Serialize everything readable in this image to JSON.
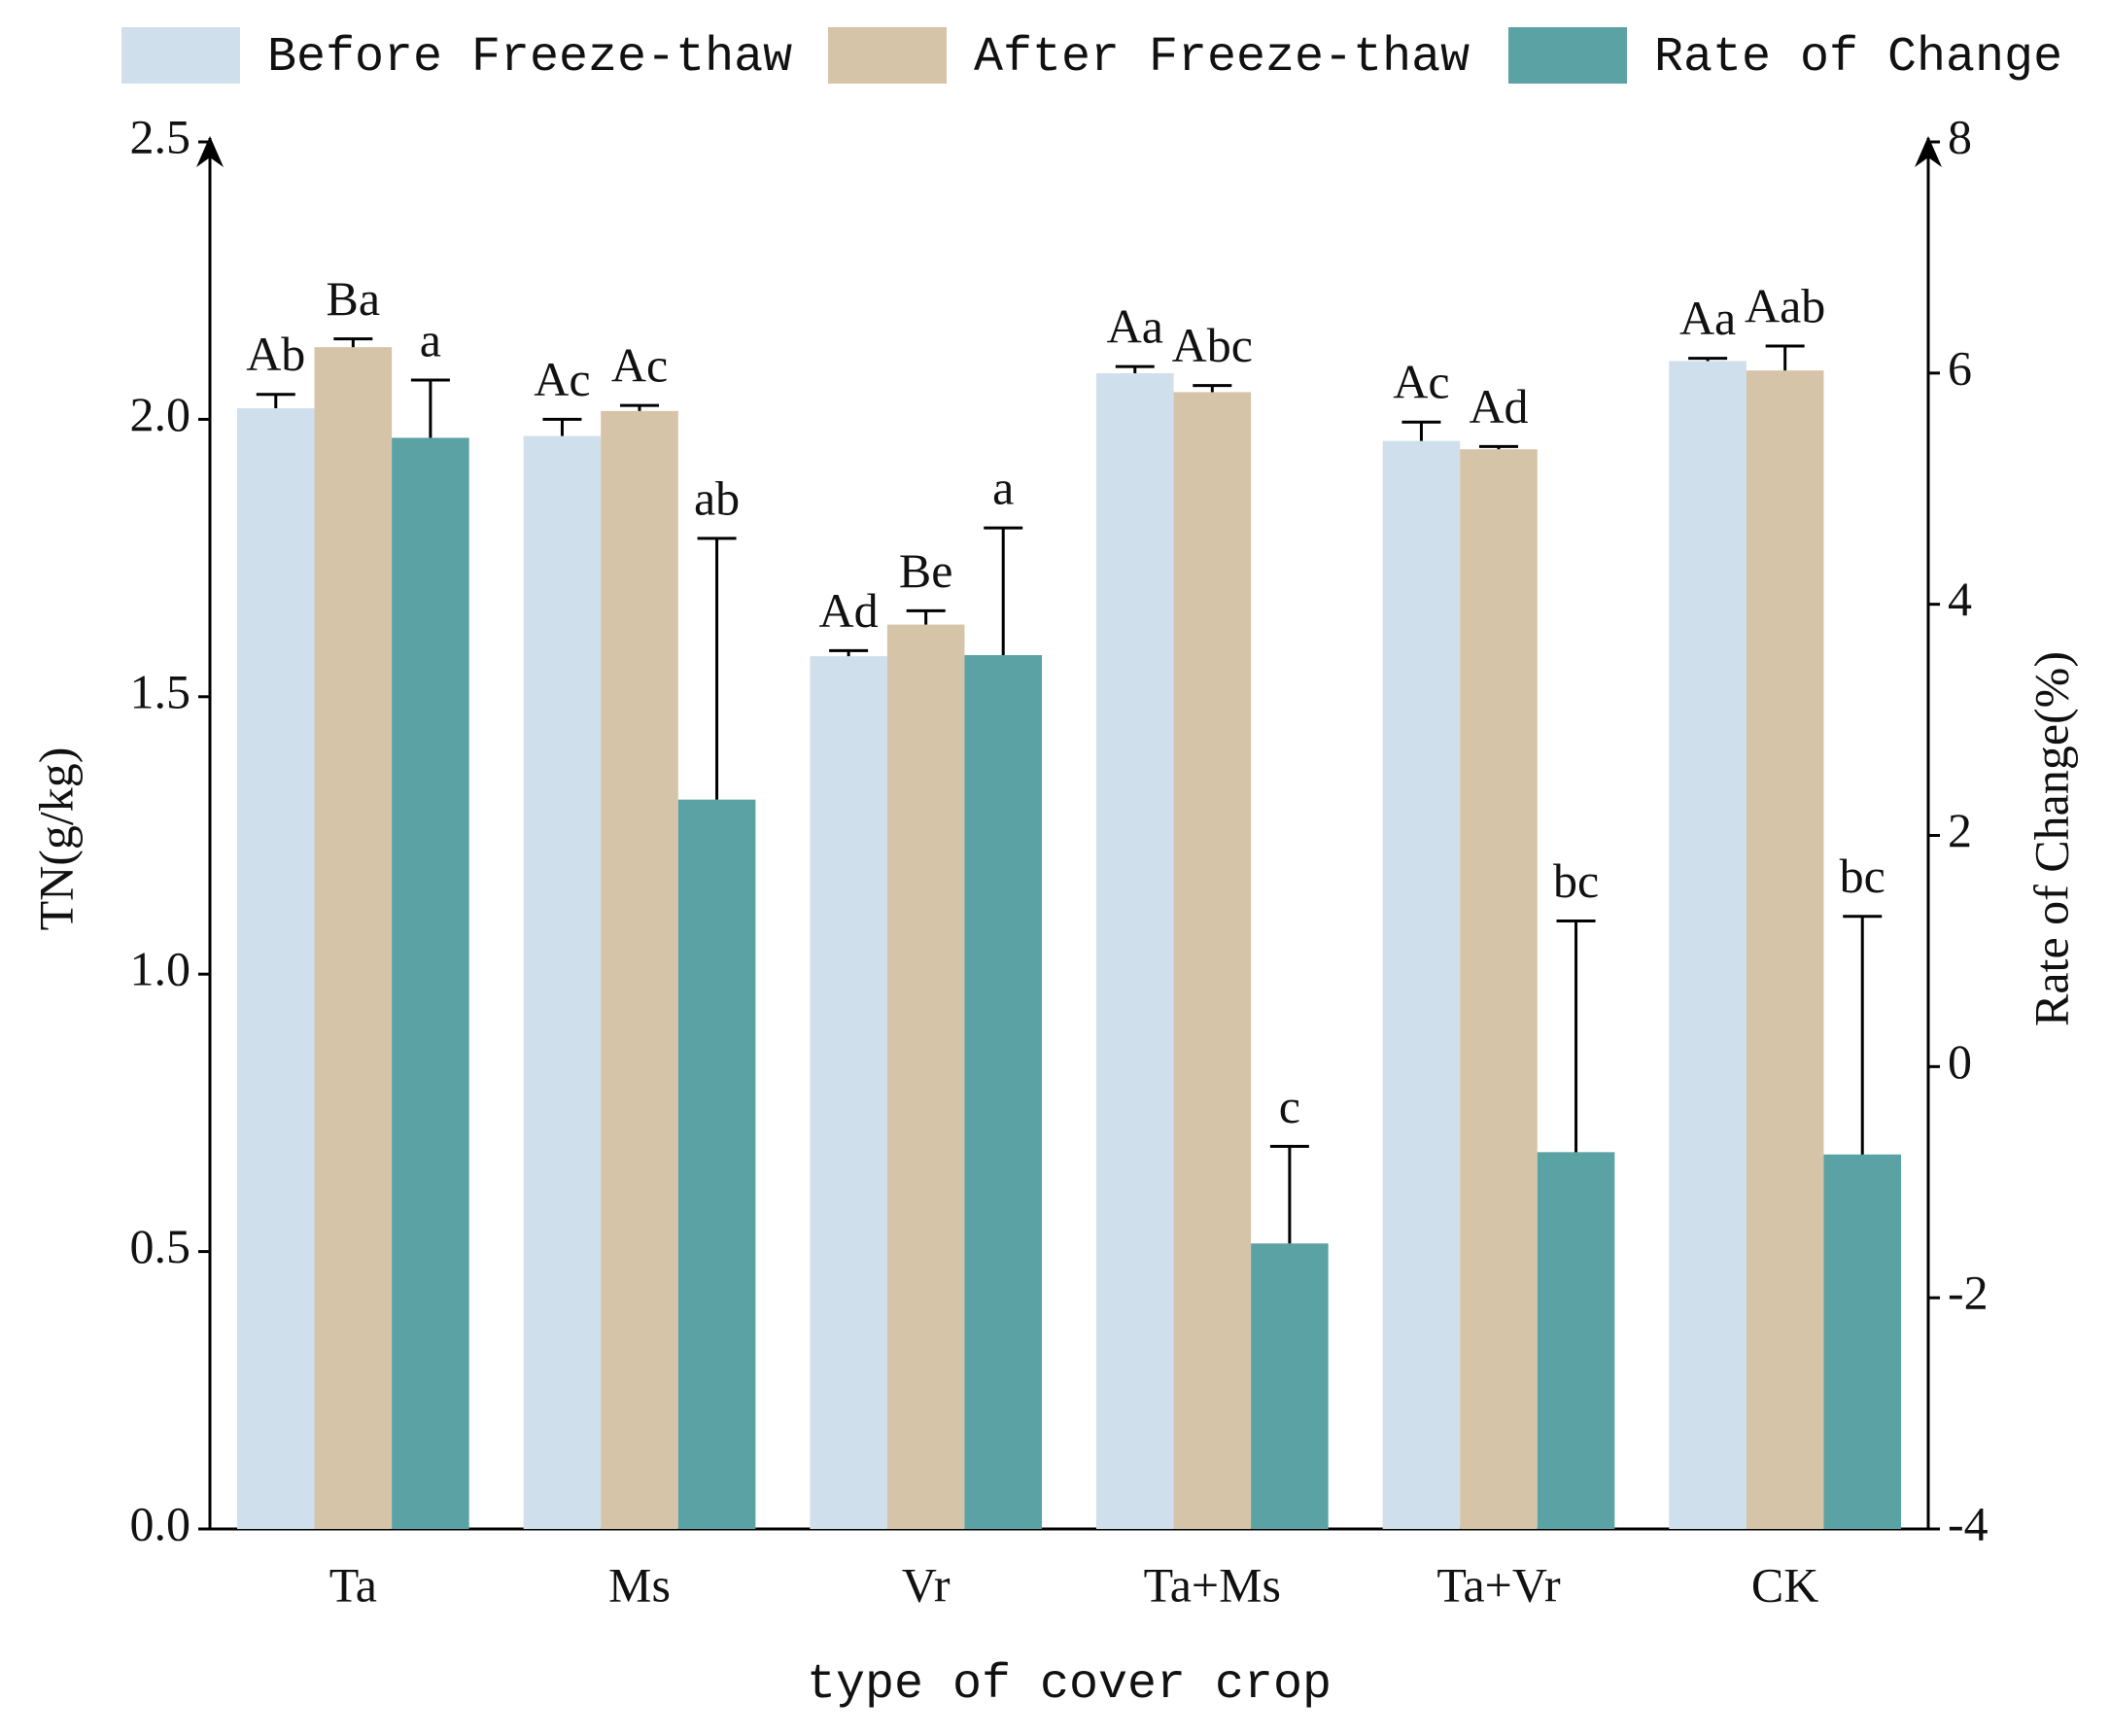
{
  "chart_data": {
    "type": "bar",
    "x_label": "type of cover crop",
    "y_label": "TN(g/kg)",
    "y2_label": "Rate of Change(%)",
    "categories": [
      "Ta",
      "Ms",
      "Vr",
      "Ta+Ms",
      "Ta+Vr",
      "CK"
    ],
    "series": [
      {
        "name": "Before Freeze-thaw",
        "color": "#cfe0ec",
        "axis": "y",
        "values": [
          2.02,
          1.97,
          1.573,
          2.083,
          1.961,
          2.105
        ],
        "errors": [
          0.025,
          0.03,
          0.01,
          0.012,
          0.034,
          0.005
        ],
        "letters": [
          "Ab",
          "Ac",
          "Ad",
          "Aa",
          "Ac",
          "Aa"
        ]
      },
      {
        "name": "After Freeze-thaw",
        "color": "#d5c4a8",
        "axis": "y",
        "values": [
          2.13,
          2.015,
          1.63,
          2.049,
          1.946,
          2.088
        ],
        "errors": [
          0.015,
          0.01,
          0.025,
          0.012,
          0.005,
          0.044
        ],
        "letters": [
          "Ba",
          "Ac",
          "Be",
          "Abc",
          "Ad",
          "Aab"
        ]
      },
      {
        "name": "Rate of Change",
        "color": "#5ba2a4",
        "axis": "y2",
        "values": [
          5.44,
          2.31,
          3.56,
          -1.53,
          -0.74,
          -0.76
        ],
        "errors": [
          0.5,
          2.26,
          1.1,
          0.84,
          2.0,
          2.06
        ],
        "letters": [
          "a",
          "ab",
          "a",
          "c",
          "bc",
          "bc"
        ]
      }
    ],
    "ylim": [
      0,
      2.5
    ],
    "yticks": [
      {
        "value": 0,
        "label": "0.0"
      },
      {
        "value": 0.5,
        "label": "0.5"
      },
      {
        "value": 1,
        "label": "1.0"
      },
      {
        "value": 1.5,
        "label": "1.5"
      },
      {
        "value": 2,
        "label": "2.0"
      },
      {
        "value": 2.5,
        "label": "2.5"
      }
    ],
    "y2lim": [
      -4,
      8
    ],
    "y2ticks": [
      -4,
      -2,
      0,
      2,
      4,
      6,
      8
    ],
    "grid": false,
    "legend": "top"
  }
}
